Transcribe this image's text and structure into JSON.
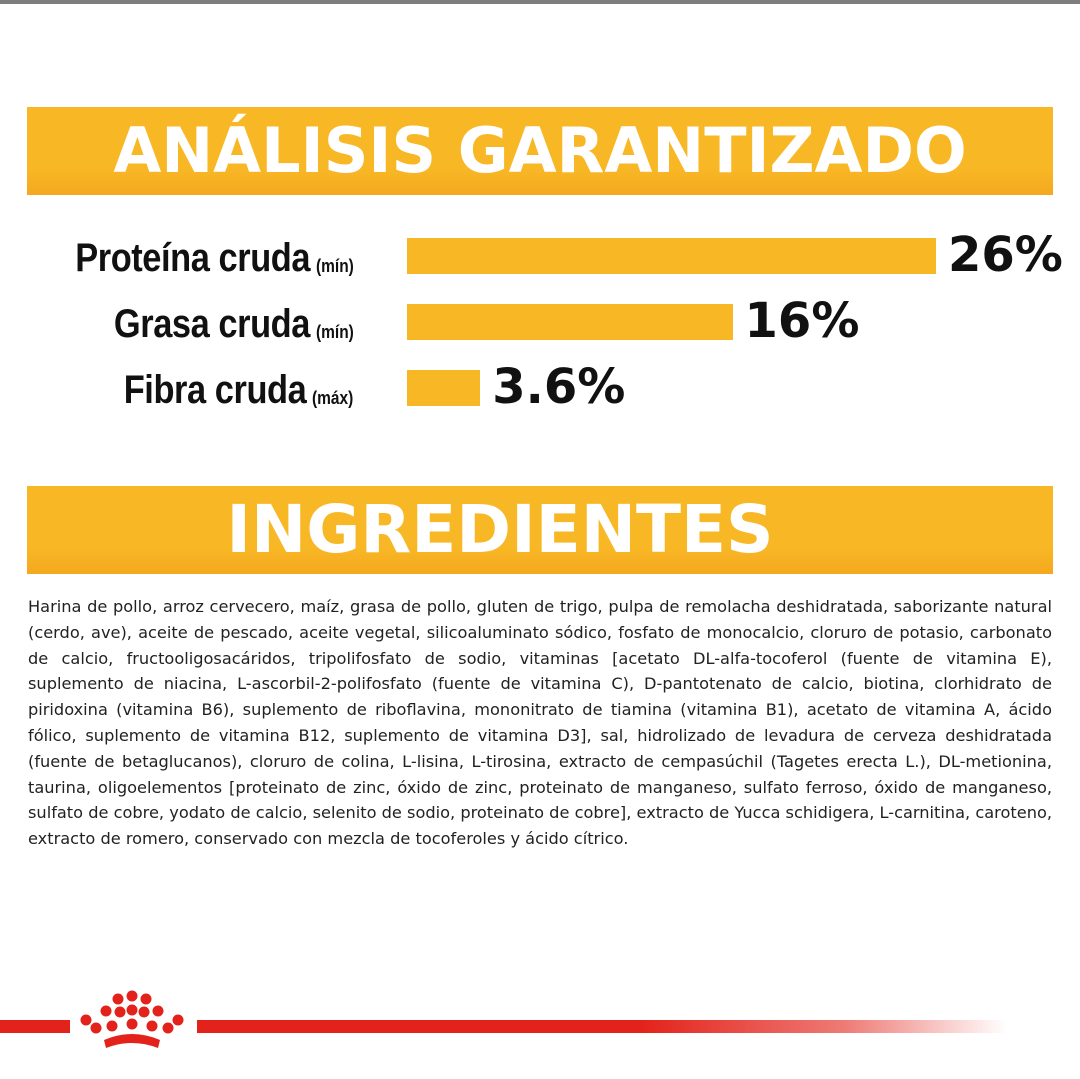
{
  "analysis": {
    "title": "ANÁLISIS GARANTIZADO",
    "rows": [
      {
        "name": "Proteína cruda",
        "qualifier": "(mín)",
        "value_label": "26%",
        "percent": 26
      },
      {
        "name": "Grasa cruda",
        "qualifier": "(mín)",
        "value_label": "16%",
        "percent": 16
      },
      {
        "name": "Fibra cruda",
        "qualifier": "(máx)",
        "value_label": "3.6%",
        "percent": 3.6
      }
    ]
  },
  "ingredients": {
    "title": "INGREDIENTES",
    "text": "Harina de pollo, arroz cervecero, maíz, grasa de pollo, gluten de trigo, pulpa de remolacha deshidratada, saborizante natural (cerdo, ave), aceite de pescado, aceite vegetal, silicoaluminato sódico, fosfato de monocalcio, cloruro de potasio, carbonato de calcio, fructooligosacáridos, tripolifosfato de sodio, vitaminas [acetato DL-alfa-tocoferol (fuente de vitamina E), suplemento de niacina, L-ascorbil-2-polifosfato (fuente de vitamina C), D-pantotenato de calcio, biotina, clorhidrato de piridoxina (vitamina B6), suplemento de riboflavina, mononitrato de tiamina (vitamina B1), acetato de vitamina A, ácido fólico, suplemento de vitamina B12, suplemento de vitamina D3], sal, hidrolizado de levadura de cerveza deshidratada (fuente de betaglucanos), cloruro de colina, L-lisina, L-tirosina, extracto de cempasúchil (Tagetes erecta L.), DL-metionina, taurina, oligoelementos [proteinato de zinc, óxido de zinc, proteinato de manganeso, sulfato ferroso, óxido de manganeso, sulfato de cobre, yodato de calcio, selenito de sodio, proteinato de cobre], extracto de Yucca schidigera, L-carnitina, caroteno, extracto de romero, conservado con mezcla de tocoferoles y ácido cítrico."
  },
  "colors": {
    "accent_yellow": "#f8b725",
    "brand_red": "#e3231b",
    "text_dark": "#111111"
  },
  "footer": {
    "logo_icon": "crown-logo-icon"
  }
}
